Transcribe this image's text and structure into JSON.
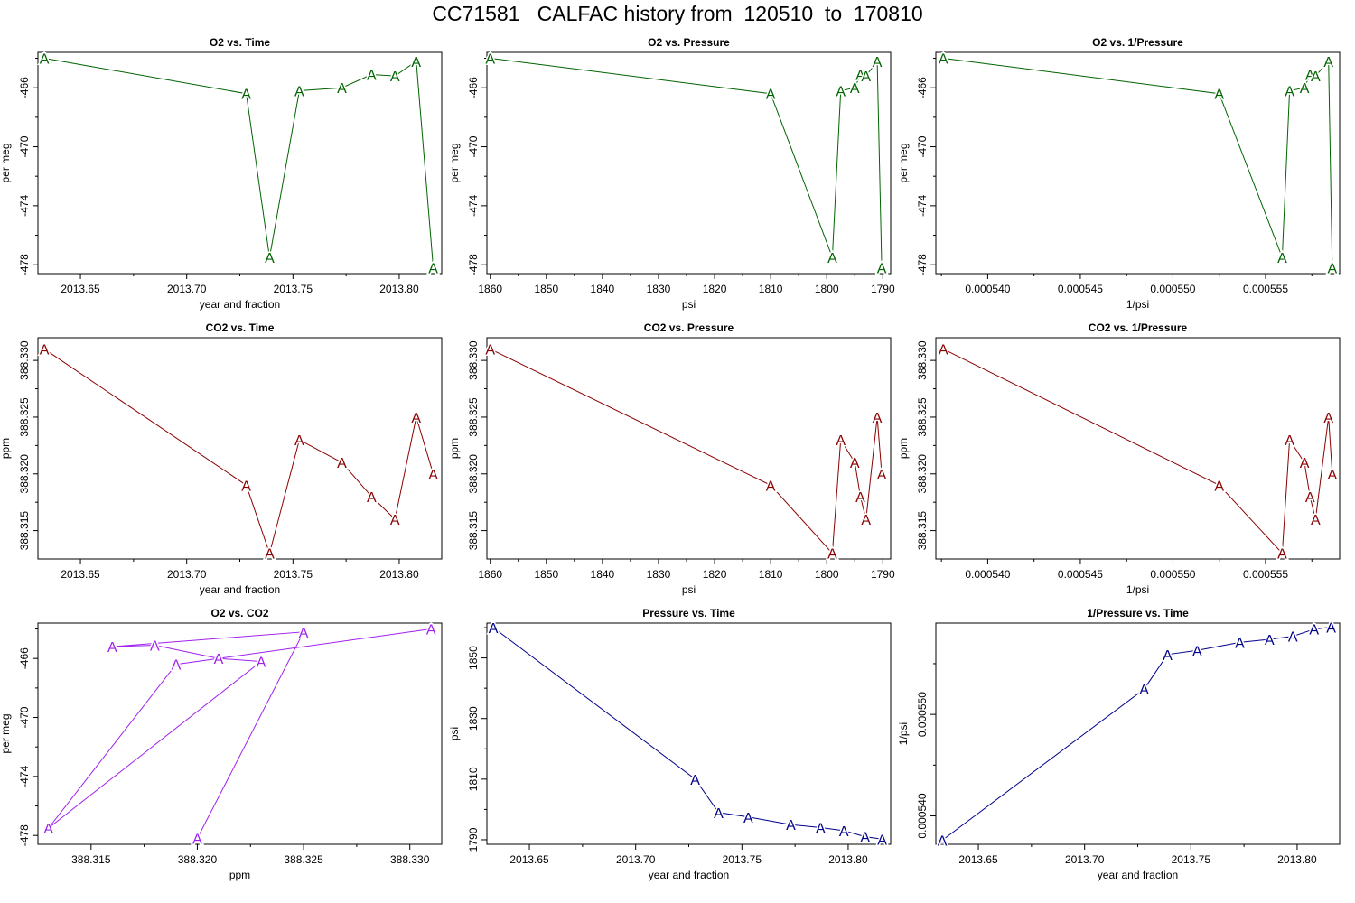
{
  "page": {
    "title": "CC71581   CALFAC history from  120510  to  170810"
  },
  "chart_data": [
    {
      "type": "line",
      "title": "O2 vs. Time",
      "xlabel": "year and fraction",
      "ylabel": "per meg",
      "marker": "A",
      "color": "#006400",
      "x": [
        2013.633,
        2013.728,
        2013.739,
        2013.753,
        2013.773,
        2013.787,
        2013.798,
        2013.808,
        2013.816
      ],
      "y": [
        -464.0,
        -466.4,
        -477.5,
        -466.2,
        -466.0,
        -465.1,
        -465.2,
        -464.2,
        -478.2
      ],
      "xticks": [
        2013.65,
        2013.7,
        2013.75,
        2013.8
      ],
      "xtick_labels": [
        "2013.65",
        "2013.70",
        "2013.75",
        "2013.80"
      ],
      "yticks": [
        -466,
        -470,
        -474,
        -478
      ],
      "ytick_labels": [
        "-466",
        "-470",
        "-474",
        "-478"
      ],
      "xlim": [
        2013.63,
        2013.82
      ],
      "ylim": [
        -478.6,
        -463.6
      ]
    },
    {
      "type": "line",
      "title": "O2 vs. Pressure",
      "xlabel": "psi",
      "ylabel": "per meg",
      "marker": "A",
      "color": "#006400",
      "x": [
        1860.0,
        1810.0,
        1799.0,
        1797.5,
        1795.0,
        1794.0,
        1793.0,
        1791.0,
        1790.2
      ],
      "y": [
        -464.0,
        -466.4,
        -477.5,
        -466.2,
        -466.0,
        -465.1,
        -465.2,
        -464.2,
        -478.2
      ],
      "xticks": [
        1860,
        1850,
        1840,
        1830,
        1820,
        1810,
        1800,
        1790
      ],
      "xtick_labels": [
        "1860",
        "1850",
        "1840",
        "1830",
        "1820",
        "1810",
        "1800",
        "1790"
      ],
      "yticks": [
        -466,
        -470,
        -474,
        -478
      ],
      "ytick_labels": [
        "-466",
        "-470",
        "-474",
        "-478"
      ],
      "xlim": [
        1860.6,
        1788.6
      ],
      "ylim": [
        -478.6,
        -463.6
      ]
    },
    {
      "type": "line",
      "title": "O2 vs. 1/Pressure",
      "xlabel": "1/psi",
      "ylabel": "per meg",
      "marker": "A",
      "color": "#006400",
      "x": [
        0.0005376,
        0.0005525,
        0.0005559,
        0.0005563,
        0.0005571,
        0.0005574,
        0.0005577,
        0.0005584,
        0.0005586
      ],
      "y": [
        -464.0,
        -466.4,
        -477.5,
        -466.2,
        -466.0,
        -465.1,
        -465.2,
        -464.2,
        -478.2
      ],
      "xticks": [
        0.00054,
        0.000545,
        0.00055,
        0.000555
      ],
      "xtick_labels": [
        "0.000540",
        "0.000545",
        "0.000550",
        "0.000555"
      ],
      "yticks": [
        -466,
        -470,
        -474,
        -478
      ],
      "ytick_labels": [
        "-466",
        "-470",
        "-474",
        "-478"
      ],
      "xlim": [
        0.0005372,
        0.000559
      ],
      "ylim": [
        -478.6,
        -463.6
      ]
    },
    {
      "type": "line",
      "title": "CO2 vs. Time",
      "xlabel": "year and fraction",
      "ylabel": "ppm",
      "marker": "A",
      "color": "#8b0000",
      "x": [
        2013.633,
        2013.728,
        2013.739,
        2013.753,
        2013.773,
        2013.787,
        2013.798,
        2013.808,
        2013.816
      ],
      "y": [
        388.331,
        388.319,
        388.313,
        388.323,
        388.321,
        388.318,
        388.316,
        388.325,
        388.32
      ],
      "xticks": [
        2013.65,
        2013.7,
        2013.75,
        2013.8
      ],
      "xtick_labels": [
        "2013.65",
        "2013.70",
        "2013.75",
        "2013.80"
      ],
      "yticks": [
        388.315,
        388.32,
        388.325,
        388.33
      ],
      "ytick_labels": [
        "388.315",
        "388.320",
        "388.325",
        "388.330"
      ],
      "xlim": [
        2013.63,
        2013.82
      ],
      "ylim": [
        388.3125,
        388.332
      ]
    },
    {
      "type": "line",
      "title": "CO2 vs. Pressure",
      "xlabel": "psi",
      "ylabel": "ppm",
      "marker": "A",
      "color": "#8b0000",
      "x": [
        1860.0,
        1810.0,
        1799.0,
        1797.5,
        1795.0,
        1794.0,
        1793.0,
        1791.0,
        1790.2
      ],
      "y": [
        388.331,
        388.319,
        388.313,
        388.323,
        388.321,
        388.318,
        388.316,
        388.325,
        388.32
      ],
      "xticks": [
        1860,
        1850,
        1840,
        1830,
        1820,
        1810,
        1800,
        1790
      ],
      "xtick_labels": [
        "1860",
        "1850",
        "1840",
        "1830",
        "1820",
        "1810",
        "1800",
        "1790"
      ],
      "yticks": [
        388.315,
        388.32,
        388.325,
        388.33
      ],
      "ytick_labels": [
        "388.315",
        "388.320",
        "388.325",
        "388.330"
      ],
      "xlim": [
        1860.6,
        1788.6
      ],
      "ylim": [
        388.3125,
        388.332
      ]
    },
    {
      "type": "line",
      "title": "CO2 vs. 1/Pressure",
      "xlabel": "1/psi",
      "ylabel": "ppm",
      "marker": "A",
      "color": "#8b0000",
      "x": [
        0.0005376,
        0.0005525,
        0.0005559,
        0.0005563,
        0.0005571,
        0.0005574,
        0.0005577,
        0.0005584,
        0.0005586
      ],
      "y": [
        388.331,
        388.319,
        388.313,
        388.323,
        388.321,
        388.318,
        388.316,
        388.325,
        388.32
      ],
      "xticks": [
        0.00054,
        0.000545,
        0.00055,
        0.000555
      ],
      "xtick_labels": [
        "0.000540",
        "0.000545",
        "0.000550",
        "0.000555"
      ],
      "yticks": [
        388.315,
        388.32,
        388.325,
        388.33
      ],
      "ytick_labels": [
        "388.315",
        "388.320",
        "388.325",
        "388.330"
      ],
      "xlim": [
        0.0005372,
        0.000559
      ],
      "ylim": [
        388.3125,
        388.332
      ]
    },
    {
      "type": "line",
      "title": "O2 vs. CO2",
      "xlabel": "ppm",
      "ylabel": "per meg",
      "marker": "A",
      "color": "#a020f0",
      "x": [
        388.331,
        388.319,
        388.313,
        388.323,
        388.321,
        388.318,
        388.316,
        388.325,
        388.32
      ],
      "y": [
        -464.0,
        -466.4,
        -477.5,
        -466.2,
        -466.0,
        -465.1,
        -465.2,
        -464.2,
        -478.2
      ],
      "xticks": [
        388.315,
        388.32,
        388.325,
        388.33
      ],
      "xtick_labels": [
        "388.315",
        "388.320",
        "388.325",
        "388.330"
      ],
      "yticks": [
        -466,
        -470,
        -474,
        -478
      ],
      "ytick_labels": [
        "-466",
        "-470",
        "-474",
        "-478"
      ],
      "xlim": [
        388.3125,
        388.3315
      ],
      "ylim": [
        -478.6,
        -463.6
      ]
    },
    {
      "type": "line",
      "title": "Pressure vs. Time",
      "xlabel": "year and fraction",
      "ylabel": "psi",
      "marker": "A",
      "color": "#00008b",
      "x": [
        2013.633,
        2013.728,
        2013.739,
        2013.753,
        2013.773,
        2013.787,
        2013.798,
        2013.808,
        2013.816
      ],
      "y": [
        1860.0,
        1810.0,
        1799.0,
        1797.5,
        1795.0,
        1794.0,
        1793.0,
        1791.0,
        1790.2
      ],
      "xticks": [
        2013.65,
        2013.7,
        2013.75,
        2013.8
      ],
      "xtick_labels": [
        "2013.65",
        "2013.70",
        "2013.75",
        "2013.80"
      ],
      "yticks": [
        1790,
        1810,
        1830,
        1850
      ],
      "ytick_labels": [
        "1790",
        "1810",
        "1830",
        "1850"
      ],
      "xlim": [
        2013.63,
        2013.82
      ],
      "ylim": [
        1788.5,
        1861.5
      ]
    },
    {
      "type": "line",
      "title": "1/Pressure vs. Time",
      "xlabel": "year and fraction",
      "ylabel": "1/psi",
      "marker": "A",
      "color": "#00008b",
      "x": [
        2013.633,
        2013.728,
        2013.739,
        2013.753,
        2013.773,
        2013.787,
        2013.798,
        2013.808,
        2013.816
      ],
      "y": [
        0.0005376,
        0.0005525,
        0.0005559,
        0.0005563,
        0.0005571,
        0.0005574,
        0.0005577,
        0.0005584,
        0.0005586
      ],
      "xticks": [
        2013.65,
        2013.7,
        2013.75,
        2013.8
      ],
      "xtick_labels": [
        "2013.65",
        "2013.70",
        "2013.75",
        "2013.80"
      ],
      "yticks": [
        0.00054,
        0.00055
      ],
      "ytick_labels": [
        "0.000540",
        "0.000550"
      ],
      "xlim": [
        2013.63,
        2013.82
      ],
      "ylim": [
        0.0005372,
        0.000559
      ]
    }
  ]
}
